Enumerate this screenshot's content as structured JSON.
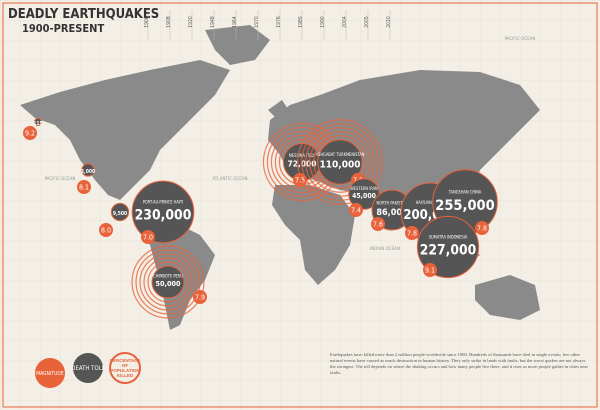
{
  "header": {
    "title": "DEADLY EARTHQUAKES",
    "subtitle": "1900-PRESENT"
  },
  "timeline": [
    "1906",
    "1908",
    "1920",
    "1948",
    "1964",
    "1970",
    "1976",
    "1985",
    "1990",
    "2004",
    "2005",
    "2010"
  ],
  "oceans": [
    "PACIFIC OCEAN",
    "ATLANTIC OCEAN",
    "INDIAN OCEAN",
    "PACIFIC OCEAN"
  ],
  "quakes": [
    {
      "name": "",
      "deaths": 115,
      "deaths_label": "115",
      "magnitude": 9.2
    },
    {
      "name": "",
      "deaths": 3000,
      "deaths_label": "3,000",
      "magnitude": 8.1
    },
    {
      "name": "",
      "deaths": 9500,
      "deaths_label": "9,500",
      "magnitude": 8,
      "magnitude_label": "8.0"
    },
    {
      "name": "PORT-AU-PRINCE HAITI",
      "deaths": 230000,
      "deaths_label": "230,000",
      "magnitude": 7,
      "magnitude_label": "7.0"
    },
    {
      "name": "CHIMBOTE PERU",
      "deaths": 50000,
      "deaths_label": "50,000",
      "magnitude": 7.9
    },
    {
      "name": "MESSINA ITALY",
      "deaths": 72000,
      "deaths_label": "72,000",
      "magnitude": 7.5
    },
    {
      "name": "ASHGABAT TURKMENISTAN",
      "deaths": 110000,
      "deaths_label": "110,000",
      "magnitude": 7.3
    },
    {
      "name": "WESTERN IRAN",
      "deaths": 45000,
      "deaths_label": "45,000",
      "magnitude": 7.4
    },
    {
      "name": "NORTH PAKISTAN",
      "deaths": 86000,
      "deaths_label": "86,000",
      "magnitude": 7.6
    },
    {
      "name": "HAIYUAN CHINA",
      "deaths": 200000,
      "deaths_label": "200,000",
      "magnitude": 7.8
    },
    {
      "name": "TANGSHAN CHINA",
      "deaths": 255000,
      "deaths_label": "255,000",
      "magnitude": 7.8
    },
    {
      "name": "SUMATRA INDONESIA",
      "deaths": 227000,
      "deaths_label": "227,000",
      "magnitude": 9.1
    }
  ],
  "legend": {
    "magnitude": "MAGNITUDE",
    "death_toll": "DEATH TOLL",
    "percentage": "PERCENTAGE OF POPULATION KILLED"
  },
  "note": "Earthquakes have killed more than 2 million people worldwide since 1900. Hundreds of thousands have died in single events; few other natural events have caused as much destruction in human history. They only strike in lands with faults, but the worst quakes are not always the strongest. The toll depends on where the shaking occurs and how many people live there, and it rises as more people gather in cities near faults."
}
